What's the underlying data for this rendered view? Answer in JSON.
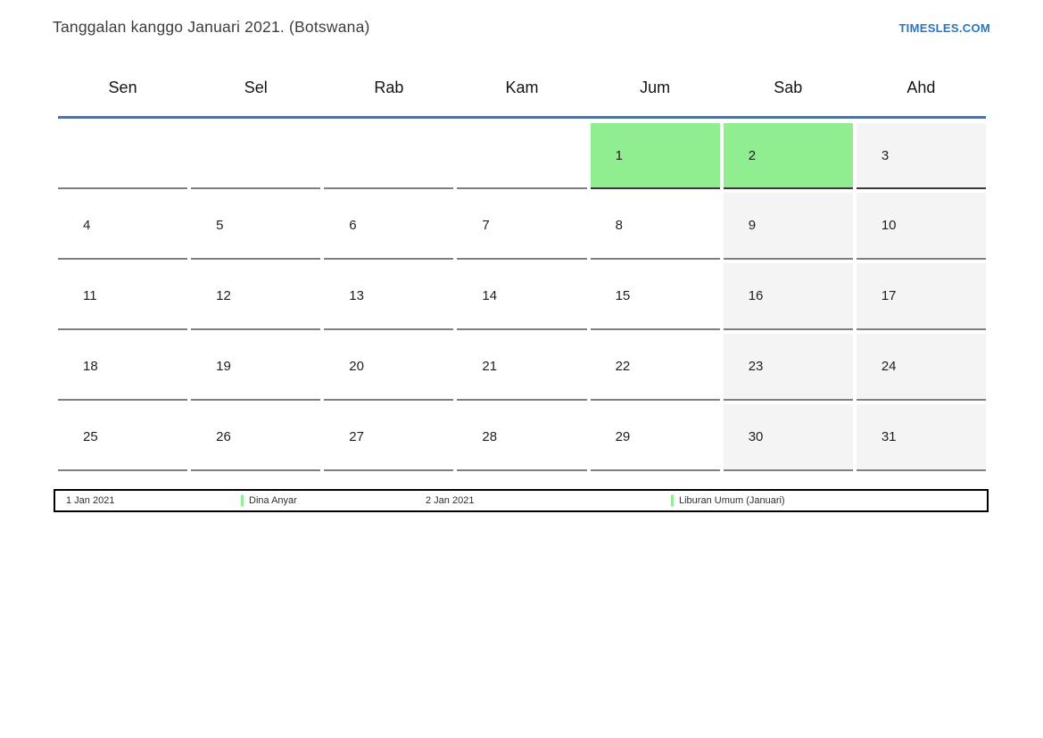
{
  "page": {
    "title": "Tanggalan kanggo Januari 2021. (Botswana)",
    "brand": "TIMESLES.COM"
  },
  "colors": {
    "holiday_green": "#90ee90",
    "weekend_gray": "#f4f4f4",
    "header_rule_blue": "#4f7399",
    "brand_blue": "#2a76bc",
    "cell_border_gray": "#7e7e7e"
  },
  "weekdays": [
    "Sen",
    "Sel",
    "Rab",
    "Kam",
    "Jum",
    "Sab",
    "Ahd"
  ],
  "weeks": [
    [
      "",
      "",
      "",
      "",
      "1",
      "2",
      "3"
    ],
    [
      "4",
      "5",
      "6",
      "7",
      "8",
      "9",
      "10"
    ],
    [
      "11",
      "12",
      "13",
      "14",
      "15",
      "16",
      "17"
    ],
    [
      "18",
      "19",
      "20",
      "21",
      "22",
      "23",
      "24"
    ],
    [
      "25",
      "26",
      "27",
      "28",
      "29",
      "30",
      "31"
    ]
  ],
  "holiday_days": [
    "1",
    "2"
  ],
  "weekend_columns": [
    "Sab",
    "Ahd"
  ],
  "legend": {
    "date1": "1 Jan 2021",
    "label1": "Dina Anyar",
    "date2": "2 Jan 2021",
    "label2": "Liburan Umum (Januari)"
  }
}
